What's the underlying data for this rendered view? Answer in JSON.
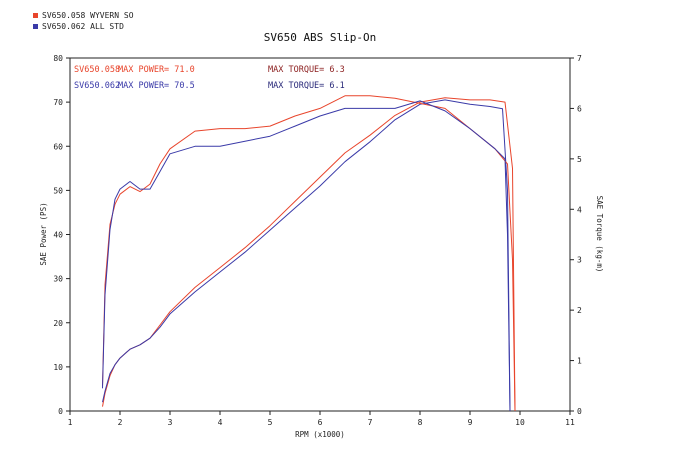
{
  "chart_data": {
    "type": "line",
    "title": "SV650 ABS  Slip-On",
    "xlabel": "RPM (x1000)",
    "ylabel_left": "SAE Power (PS)",
    "ylabel_right": "SAE Torque (kg-m)",
    "xlim": [
      1,
      11
    ],
    "ylim_left": [
      0,
      80
    ],
    "ylim_right": [
      0,
      7
    ],
    "x_ticks": [
      "1",
      "2",
      "3",
      "4",
      "5",
      "6",
      "7",
      "8",
      "9",
      "10",
      "11"
    ],
    "y_left_ticks": [
      "0",
      "10",
      "20",
      "30",
      "40",
      "50",
      "60",
      "70",
      "80"
    ],
    "y_right_ticks": [
      "0",
      "1",
      "2",
      "3",
      "4",
      "5",
      "6",
      "7"
    ],
    "grid": false,
    "legend": [
      {
        "label": "SV650.058  WYVERN SO",
        "color": "#e8452c"
      },
      {
        "label": "SV650.062  ALL STD",
        "color": "#3a3aa8"
      }
    ],
    "stats": [
      {
        "name": "SV650.058",
        "power_text": "MAX POWER= 71.0",
        "torque_text": "MAX TORQUE= 6.3",
        "color": "#e8452c",
        "torque_color": "#8b1e1e"
      },
      {
        "name": "SV650.062",
        "power_text": "MAX POWER= 70.5",
        "torque_text": "MAX TORQUE= 6.1",
        "color": "#3a3aa8",
        "torque_color": "#2a2a7a"
      }
    ],
    "series": [
      {
        "name": "SV650.058",
        "kind": "power",
        "axis": "left",
        "color": "#e8452c",
        "x": [
          1.65,
          1.7,
          1.8,
          1.9,
          2.0,
          2.2,
          2.4,
          2.6,
          2.8,
          3.0,
          3.5,
          4.0,
          4.5,
          5.0,
          5.5,
          6.0,
          6.5,
          7.0,
          7.5,
          8.0,
          8.5,
          9.0,
          9.4,
          9.7,
          9.85,
          9.9
        ],
        "y": [
          1.0,
          4.0,
          8.0,
          10.5,
          12.0,
          14.0,
          15.0,
          16.5,
          19.5,
          22.5,
          28.0,
          32.5,
          37.0,
          42.0,
          47.5,
          53.0,
          58.5,
          62.5,
          67.0,
          70.0,
          71.0,
          70.5,
          70.5,
          70.0,
          55.0,
          0.0
        ]
      },
      {
        "name": "SV650.062",
        "kind": "power",
        "axis": "left",
        "color": "#3a3aa8",
        "x": [
          1.65,
          1.7,
          1.8,
          1.9,
          2.0,
          2.2,
          2.4,
          2.6,
          2.8,
          3.0,
          3.5,
          4.0,
          4.5,
          5.0,
          5.5,
          6.0,
          6.5,
          7.0,
          7.5,
          8.0,
          8.5,
          9.0,
          9.4,
          9.65,
          9.75,
          9.8
        ],
        "y": [
          2.0,
          4.5,
          8.5,
          10.5,
          12.0,
          14.0,
          15.0,
          16.5,
          19.0,
          22.0,
          27.0,
          31.5,
          36.0,
          41.0,
          46.0,
          51.0,
          56.5,
          61.0,
          66.0,
          69.5,
          70.5,
          69.5,
          69.0,
          68.5,
          50.0,
          0.0
        ]
      },
      {
        "name": "SV650.058",
        "kind": "torque",
        "axis": "right",
        "color": "#e8452c",
        "x": [
          1.65,
          1.7,
          1.8,
          1.9,
          2.0,
          2.2,
          2.4,
          2.6,
          2.8,
          3.0,
          3.5,
          4.0,
          4.5,
          5.0,
          5.5,
          6.0,
          6.5,
          7.0,
          7.5,
          8.0,
          8.5,
          9.0,
          9.5,
          9.75,
          9.85,
          9.9
        ],
        "y": [
          0.5,
          2.5,
          3.7,
          4.1,
          4.3,
          4.45,
          4.35,
          4.5,
          4.9,
          5.2,
          5.55,
          5.6,
          5.6,
          5.65,
          5.85,
          6.0,
          6.25,
          6.25,
          6.2,
          6.1,
          6.0,
          5.6,
          5.2,
          4.9,
          3.0,
          0.0
        ]
      },
      {
        "name": "SV650.062",
        "kind": "torque",
        "axis": "right",
        "color": "#3a3aa8",
        "x": [
          1.65,
          1.7,
          1.8,
          1.9,
          2.0,
          2.2,
          2.4,
          2.6,
          2.8,
          3.0,
          3.5,
          4.0,
          4.5,
          5.0,
          5.5,
          6.0,
          6.5,
          7.0,
          7.5,
          8.0,
          8.5,
          9.0,
          9.5,
          9.7,
          9.75,
          9.8
        ],
        "y": [
          0.45,
          2.3,
          3.6,
          4.2,
          4.4,
          4.55,
          4.4,
          4.4,
          4.75,
          5.1,
          5.25,
          5.25,
          5.35,
          5.45,
          5.65,
          5.85,
          6.0,
          6.0,
          6.0,
          6.15,
          5.95,
          5.6,
          5.2,
          5.0,
          3.5,
          0.0
        ]
      }
    ]
  }
}
